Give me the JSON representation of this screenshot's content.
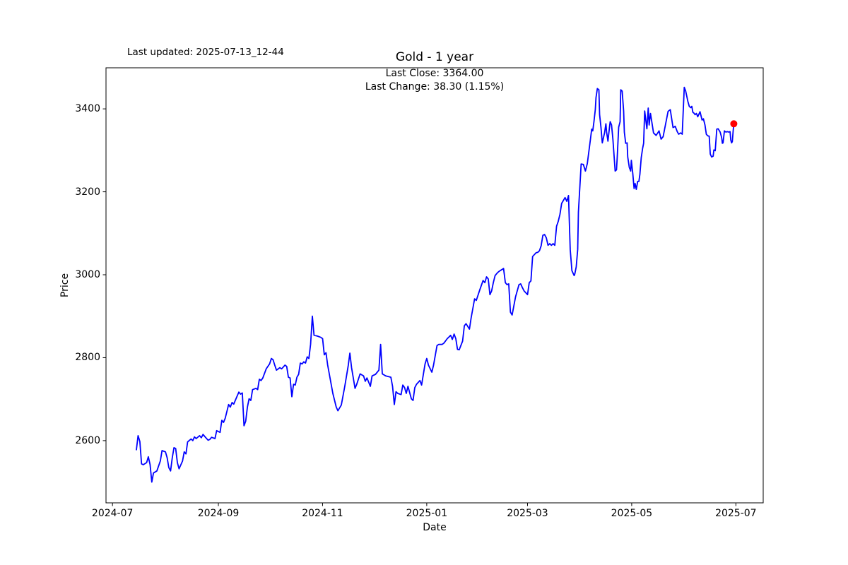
{
  "figure": {
    "last_updated": "Last updated: 2025-07-13_12-44",
    "title": "Gold - 1 year",
    "annotation": {
      "last_close": "Last Close: 3364.00",
      "last_change": "Last Change: 38.30 (1.15%)"
    }
  },
  "chart_data": {
    "type": "line",
    "title": "Gold - 1 year",
    "xlabel": "Date",
    "ylabel": "Price",
    "series_name": "Gold",
    "x_unit": "days since 2024-07-01",
    "x_epoch": "2024-07-01",
    "xlim": [
      -3.8,
      381
    ],
    "ylim": [
      2450,
      3499
    ],
    "grid": false,
    "legend": "none",
    "line_color": "#0000ff",
    "marker_color": "#ff0000",
    "frame_color": "#000000",
    "last_close": 3364.0,
    "last_change": 38.3,
    "last_change_pct": 1.15,
    "x_ticks": [
      {
        "d": 0,
        "label": "2024-07"
      },
      {
        "d": 62,
        "label": "2024-09"
      },
      {
        "d": 123,
        "label": "2024-11"
      },
      {
        "d": 184,
        "label": "2025-01"
      },
      {
        "d": 243,
        "label": "2025-03"
      },
      {
        "d": 304,
        "label": "2025-05"
      },
      {
        "d": 365,
        "label": "2025-07"
      }
    ],
    "y_ticks": [
      2600,
      2800,
      3000,
      3200,
      3400
    ],
    "points": [
      [
        14,
        2578
      ],
      [
        15,
        2612
      ],
      [
        16,
        2598
      ],
      [
        17,
        2544
      ],
      [
        18,
        2542
      ],
      [
        20,
        2547
      ],
      [
        21,
        2561
      ],
      [
        22,
        2542
      ],
      [
        23,
        2500
      ],
      [
        24,
        2522
      ],
      [
        26,
        2527
      ],
      [
        28,
        2551
      ],
      [
        29,
        2576
      ],
      [
        31,
        2573
      ],
      [
        32,
        2559
      ],
      [
        33,
        2535
      ],
      [
        34,
        2527
      ],
      [
        35,
        2559
      ],
      [
        36,
        2583
      ],
      [
        37,
        2581
      ],
      [
        38,
        2547
      ],
      [
        39,
        2532
      ],
      [
        41,
        2551
      ],
      [
        42,
        2573
      ],
      [
        43,
        2568
      ],
      [
        44,
        2597
      ],
      [
        46,
        2604
      ],
      [
        47,
        2600
      ],
      [
        48,
        2609
      ],
      [
        49,
        2605
      ],
      [
        51,
        2612
      ],
      [
        52,
        2607
      ],
      [
        53,
        2615
      ],
      [
        54,
        2610
      ],
      [
        56,
        2601
      ],
      [
        57,
        2603
      ],
      [
        58,
        2608
      ],
      [
        60,
        2605
      ],
      [
        61,
        2624
      ],
      [
        63,
        2620
      ],
      [
        64,
        2649
      ],
      [
        65,
        2644
      ],
      [
        66,
        2654
      ],
      [
        68,
        2687
      ],
      [
        69,
        2681
      ],
      [
        70,
        2692
      ],
      [
        71,
        2688
      ],
      [
        72,
        2698
      ],
      [
        74,
        2717
      ],
      [
        75,
        2712
      ],
      [
        76,
        2715
      ],
      [
        77,
        2636
      ],
      [
        78,
        2647
      ],
      [
        79,
        2681
      ],
      [
        80,
        2701
      ],
      [
        81,
        2697
      ],
      [
        82,
        2723
      ],
      [
        84,
        2726
      ],
      [
        85,
        2723
      ],
      [
        86,
        2748
      ],
      [
        87,
        2745
      ],
      [
        88,
        2751
      ],
      [
        90,
        2773
      ],
      [
        92,
        2785
      ],
      [
        93,
        2798
      ],
      [
        94,
        2795
      ],
      [
        95,
        2782
      ],
      [
        96,
        2770
      ],
      [
        98,
        2776
      ],
      [
        99,
        2773
      ],
      [
        101,
        2782
      ],
      [
        102,
        2779
      ],
      [
        103,
        2753
      ],
      [
        104,
        2751
      ],
      [
        105,
        2706
      ],
      [
        106,
        2736
      ],
      [
        107,
        2734
      ],
      [
        108,
        2753
      ],
      [
        109,
        2760
      ],
      [
        110,
        2787
      ],
      [
        111,
        2785
      ],
      [
        112,
        2790
      ],
      [
        113,
        2787
      ],
      [
        114,
        2802
      ],
      [
        115,
        2798
      ],
      [
        116,
        2832
      ],
      [
        117,
        2900
      ],
      [
        118,
        2854
      ],
      [
        120,
        2852
      ],
      [
        122,
        2849
      ],
      [
        123,
        2846
      ],
      [
        124,
        2807
      ],
      [
        125,
        2812
      ],
      [
        126,
        2782
      ],
      [
        129,
        2714
      ],
      [
        131,
        2681
      ],
      [
        132,
        2672
      ],
      [
        134,
        2686
      ],
      [
        136,
        2731
      ],
      [
        138,
        2780
      ],
      [
        139,
        2811
      ],
      [
        140,
        2776
      ],
      [
        142,
        2726
      ],
      [
        143,
        2736
      ],
      [
        145,
        2761
      ],
      [
        147,
        2756
      ],
      [
        148,
        2743
      ],
      [
        149,
        2751
      ],
      [
        151,
        2731
      ],
      [
        152,
        2756
      ],
      [
        154,
        2760
      ],
      [
        156,
        2770
      ],
      [
        157,
        2832
      ],
      [
        158,
        2761
      ],
      [
        160,
        2756
      ],
      [
        163,
        2753
      ],
      [
        164,
        2731
      ],
      [
        165,
        2687
      ],
      [
        166,
        2718
      ],
      [
        167,
        2714
      ],
      [
        169,
        2711
      ],
      [
        170,
        2734
      ],
      [
        171,
        2728
      ],
      [
        172,
        2714
      ],
      [
        173,
        2731
      ],
      [
        175,
        2701
      ],
      [
        176,
        2697
      ],
      [
        177,
        2728
      ],
      [
        178,
        2736
      ],
      [
        180,
        2745
      ],
      [
        181,
        2734
      ],
      [
        183,
        2785
      ],
      [
        184,
        2798
      ],
      [
        185,
        2782
      ],
      [
        187,
        2765
      ],
      [
        188,
        2782
      ],
      [
        190,
        2829
      ],
      [
        191,
        2832
      ],
      [
        193,
        2832
      ],
      [
        194,
        2835
      ],
      [
        196,
        2846
      ],
      [
        198,
        2854
      ],
      [
        199,
        2844
      ],
      [
        200,
        2857
      ],
      [
        201,
        2846
      ],
      [
        202,
        2820
      ],
      [
        203,
        2819
      ],
      [
        205,
        2840
      ],
      [
        206,
        2877
      ],
      [
        207,
        2882
      ],
      [
        209,
        2869
      ],
      [
        210,
        2896
      ],
      [
        212,
        2942
      ],
      [
        213,
        2938
      ],
      [
        215,
        2963
      ],
      [
        217,
        2986
      ],
      [
        218,
        2981
      ],
      [
        219,
        2995
      ],
      [
        220,
        2990
      ],
      [
        221,
        2952
      ],
      [
        222,
        2961
      ],
      [
        223,
        2981
      ],
      [
        224,
        2998
      ],
      [
        225,
        3003
      ],
      [
        226,
        3007
      ],
      [
        227,
        3010
      ],
      [
        229,
        3015
      ],
      [
        230,
        2981
      ],
      [
        231,
        2976
      ],
      [
        232,
        2978
      ],
      [
        233,
        2910
      ],
      [
        234,
        2903
      ],
      [
        236,
        2947
      ],
      [
        238,
        2976
      ],
      [
        239,
        2978
      ],
      [
        240,
        2969
      ],
      [
        241,
        2961
      ],
      [
        243,
        2952
      ],
      [
        244,
        2981
      ],
      [
        245,
        2985
      ],
      [
        246,
        3044
      ],
      [
        248,
        3053
      ],
      [
        249,
        3054
      ],
      [
        250,
        3058
      ],
      [
        251,
        3070
      ],
      [
        252,
        3095
      ],
      [
        253,
        3097
      ],
      [
        254,
        3089
      ],
      [
        255,
        3071
      ],
      [
        256,
        3075
      ],
      [
        257,
        3071
      ],
      [
        258,
        3075
      ],
      [
        259,
        3071
      ],
      [
        260,
        3117
      ],
      [
        261,
        3129
      ],
      [
        262,
        3146
      ],
      [
        263,
        3172
      ],
      [
        265,
        3186
      ],
      [
        266,
        3177
      ],
      [
        267,
        3191
      ],
      [
        268,
        3061
      ],
      [
        269,
        3010
      ],
      [
        270.3,
        2998
      ],
      [
        270.7,
        3002
      ],
      [
        271.5,
        3019
      ],
      [
        272.4,
        3061
      ],
      [
        272.8,
        3151
      ],
      [
        274.4,
        3267
      ],
      [
        275.7,
        3266
      ],
      [
        276.9,
        3250
      ],
      [
        278,
        3268
      ],
      [
        279.8,
        3325
      ],
      [
        280.6,
        3351
      ],
      [
        281.2,
        3347
      ],
      [
        281.9,
        3369
      ],
      [
        282.7,
        3398
      ],
      [
        283.1,
        3427
      ],
      [
        283.9,
        3449
      ],
      [
        284.8,
        3446
      ],
      [
        285.2,
        3386
      ],
      [
        286,
        3356
      ],
      [
        286.8,
        3318
      ],
      [
        287.3,
        3327
      ],
      [
        288.1,
        3342
      ],
      [
        288.9,
        3364
      ],
      [
        289.3,
        3344
      ],
      [
        290.1,
        3322
      ],
      [
        291,
        3356
      ],
      [
        291.4,
        3369
      ],
      [
        292.2,
        3361
      ],
      [
        293,
        3327
      ],
      [
        294.3,
        3250
      ],
      [
        295.1,
        3253
      ],
      [
        295.5,
        3282
      ],
      [
        296.4,
        3356
      ],
      [
        297.2,
        3369
      ],
      [
        297.6,
        3446
      ],
      [
        298.4,
        3443
      ],
      [
        299.3,
        3395
      ],
      [
        299.7,
        3344
      ],
      [
        300.5,
        3317
      ],
      [
        301.3,
        3318
      ],
      [
        301.7,
        3284
      ],
      [
        302.6,
        3259
      ],
      [
        303.4,
        3250
      ],
      [
        303.8,
        3276
      ],
      [
        304.6,
        3245
      ],
      [
        305.4,
        3208
      ],
      [
        306,
        3220
      ],
      [
        306.7,
        3206
      ],
      [
        307.5,
        3225
      ],
      [
        308.2,
        3225
      ],
      [
        308.8,
        3242
      ],
      [
        309.6,
        3282
      ],
      [
        310.4,
        3305
      ],
      [
        311,
        3317
      ],
      [
        311.6,
        3395
      ],
      [
        312.1,
        3378
      ],
      [
        312.9,
        3352
      ],
      [
        313.7,
        3402
      ],
      [
        314.2,
        3361
      ],
      [
        315,
        3389
      ],
      [
        316.8,
        3342
      ],
      [
        318.3,
        3336
      ],
      [
        320,
        3347
      ],
      [
        321.2,
        3327
      ],
      [
        322.4,
        3333
      ],
      [
        325.3,
        3394
      ],
      [
        326.6,
        3398
      ],
      [
        328.2,
        3355
      ],
      [
        329.5,
        3358
      ],
      [
        330.7,
        3345
      ],
      [
        331.5,
        3339
      ],
      [
        332.7,
        3342
      ],
      [
        333.6,
        3339
      ],
      [
        334.8,
        3452
      ],
      [
        335.6,
        3443
      ],
      [
        336.9,
        3418
      ],
      [
        337.7,
        3406
      ],
      [
        338.6,
        3403
      ],
      [
        339.2,
        3406
      ],
      [
        339.8,
        3392
      ],
      [
        340.6,
        3389
      ],
      [
        341.1,
        3386
      ],
      [
        341.9,
        3389
      ],
      [
        342.7,
        3381
      ],
      [
        344,
        3393
      ],
      [
        345.2,
        3373
      ],
      [
        346,
        3376
      ],
      [
        346.9,
        3361
      ],
      [
        347.7,
        3339
      ],
      [
        348.5,
        3335
      ],
      [
        349.4,
        3334
      ],
      [
        350,
        3291
      ],
      [
        350.8,
        3284
      ],
      [
        351.7,
        3286
      ],
      [
        352.1,
        3301
      ],
      [
        352.9,
        3299
      ],
      [
        353.8,
        3351
      ],
      [
        354.6,
        3352
      ],
      [
        355.4,
        3347
      ],
      [
        355.8,
        3344
      ],
      [
        356.7,
        3330
      ],
      [
        357.1,
        3317
      ],
      [
        357.5,
        3318
      ],
      [
        358.3,
        3347
      ],
      [
        359.1,
        3344
      ],
      [
        360,
        3345
      ],
      [
        360.8,
        3344
      ],
      [
        361.6,
        3345
      ],
      [
        362,
        3325
      ],
      [
        362.5,
        3318
      ],
      [
        362.9,
        3321
      ],
      [
        363.4,
        3347
      ],
      [
        363.8,
        3364
      ]
    ]
  }
}
